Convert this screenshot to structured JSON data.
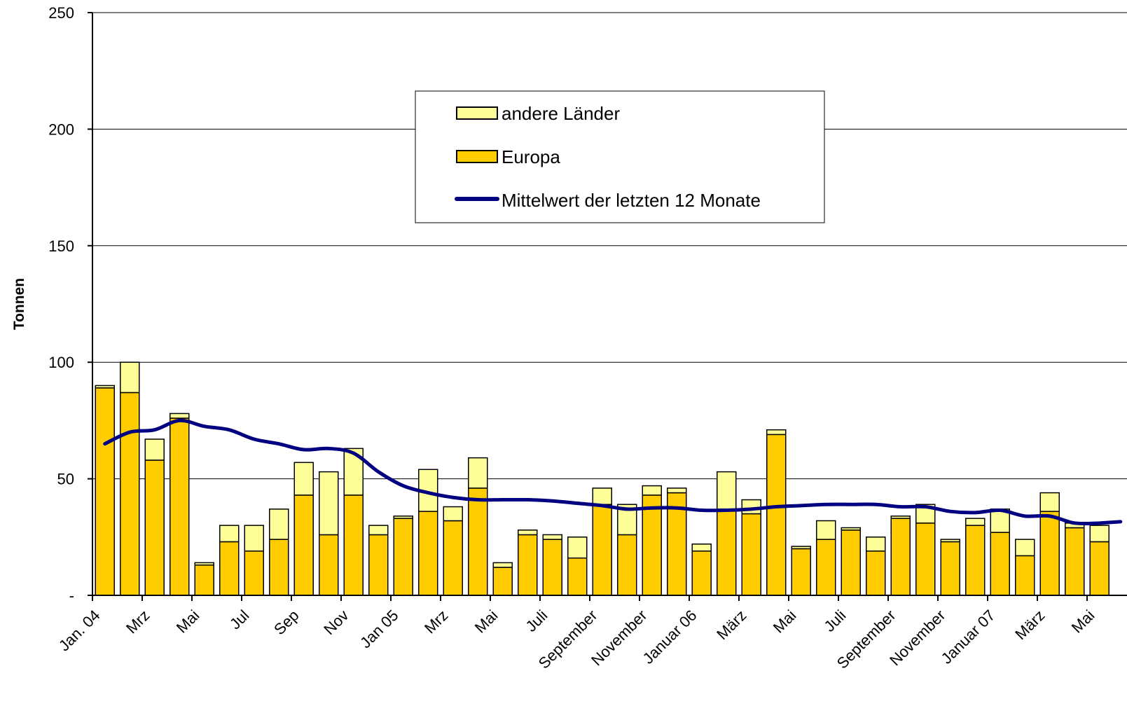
{
  "chart_data": {
    "type": "bar",
    "stacked": true,
    "ylabel": "Tonnen",
    "ylim": [
      0,
      250
    ],
    "yticks": [
      {
        "value": 0,
        "label": "-"
      },
      {
        "value": 50,
        "label": "50"
      },
      {
        "value": 100,
        "label": "100"
      },
      {
        "value": 150,
        "label": "150"
      },
      {
        "value": 200,
        "label": "200"
      },
      {
        "value": 250,
        "label": "250"
      }
    ],
    "grid": true,
    "legend_position": "top-center",
    "colors": {
      "europa": "#FFCC00",
      "andere": "#FFFF99",
      "mittelwert": "#000080",
      "outline": "#000000"
    },
    "x_tick_labels": [
      {
        "index": 0,
        "label": "Jan. 04"
      },
      {
        "index": 2,
        "label": "Mrz"
      },
      {
        "index": 4,
        "label": "Mai"
      },
      {
        "index": 6,
        "label": "Jul"
      },
      {
        "index": 8,
        "label": "Sep"
      },
      {
        "index": 10,
        "label": "Nov"
      },
      {
        "index": 12,
        "label": "Jan 05"
      },
      {
        "index": 14,
        "label": "Mrz"
      },
      {
        "index": 16,
        "label": "Mai"
      },
      {
        "index": 18,
        "label": "Juli"
      },
      {
        "index": 20,
        "label": "September"
      },
      {
        "index": 22,
        "label": "November"
      },
      {
        "index": 24,
        "label": "Januar 06"
      },
      {
        "index": 26,
        "label": "März"
      },
      {
        "index": 28,
        "label": "Mai"
      },
      {
        "index": 30,
        "label": "Juli"
      },
      {
        "index": 32,
        "label": "September"
      },
      {
        "index": 34,
        "label": "November"
      },
      {
        "index": 36,
        "label": "Januar 07"
      },
      {
        "index": 38,
        "label": "März"
      },
      {
        "index": 40,
        "label": "Mai"
      }
    ],
    "series": [
      {
        "name": "Europa",
        "type": "bar",
        "values": [
          89,
          87,
          58,
          76,
          13,
          23,
          19,
          24,
          43,
          26,
          43,
          26,
          33,
          36,
          32,
          46,
          12,
          26,
          24,
          16,
          39,
          26,
          43,
          44,
          19,
          37,
          35,
          69,
          20,
          24,
          28,
          19,
          33,
          31,
          23,
          30,
          27,
          17,
          36,
          29,
          23
        ]
      },
      {
        "name": "andere Länder",
        "type": "bar",
        "values": [
          1,
          13,
          9,
          2,
          1,
          7,
          11,
          13,
          14,
          27,
          20,
          4,
          1,
          18,
          6,
          13,
          2,
          2,
          2,
          9,
          7,
          13,
          4,
          2,
          3,
          16,
          6,
          2,
          1,
          8,
          1,
          6,
          1,
          8,
          1,
          3,
          10,
          7,
          8,
          2,
          7
        ]
      },
      {
        "name": "Mittelwert der letzten 12 Monate",
        "type": "line",
        "values": [
          65,
          70,
          71,
          75,
          72.5,
          71,
          67,
          65,
          62.5,
          63,
          61,
          53,
          47,
          44,
          42,
          41,
          41,
          41,
          40.5,
          39.5,
          38.5,
          37,
          37.5,
          37.5,
          36.5,
          36.5,
          37,
          38,
          38.5,
          39,
          39,
          39,
          38,
          38,
          36,
          35.5,
          36.5,
          34,
          34,
          31,
          31
        ]
      }
    ]
  }
}
